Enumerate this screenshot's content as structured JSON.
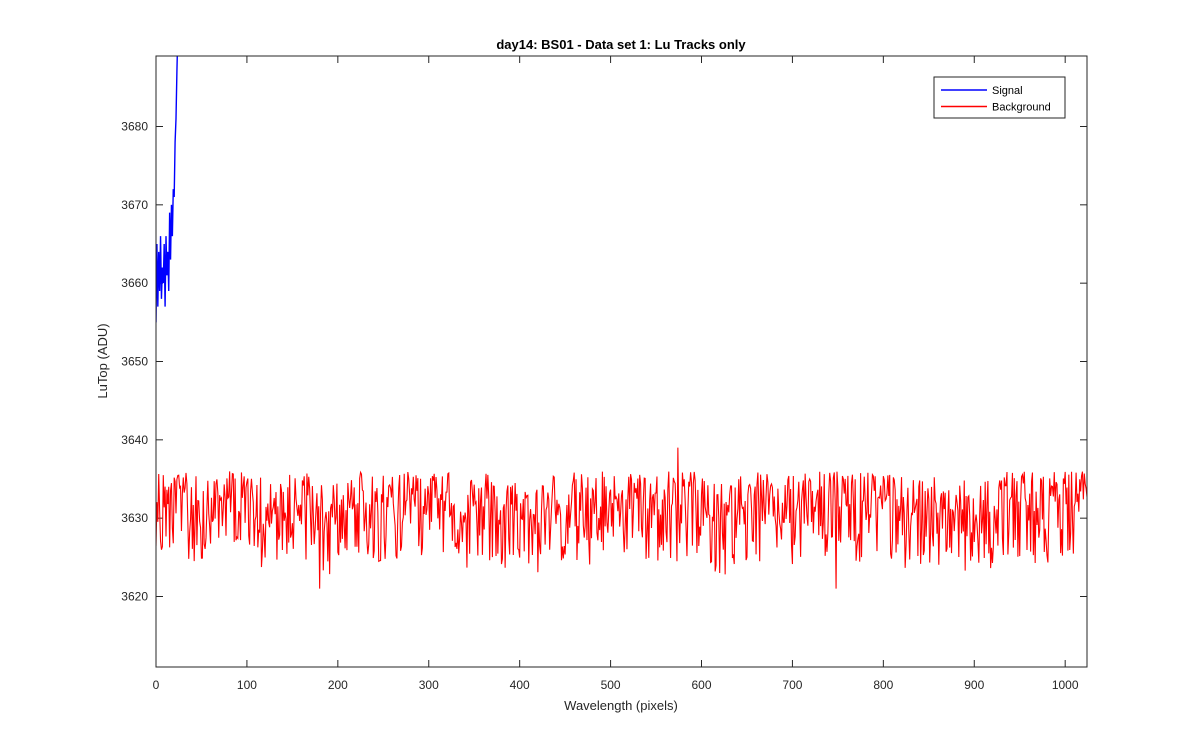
{
  "chart_data": {
    "type": "line",
    "title": "day14: BS01 - Data set 1: Lu Tracks only",
    "xlabel": "Wavelength (pixels)",
    "ylabel": "LuTop (ADU)",
    "xlim": [
      0,
      1024
    ],
    "ylim": [
      3611,
      3689
    ],
    "xticks": [
      0,
      100,
      200,
      300,
      400,
      500,
      600,
      700,
      800,
      900,
      1000
    ],
    "yticks": [
      3620,
      3630,
      3640,
      3650,
      3660,
      3670,
      3680
    ],
    "grid": false,
    "legend_position": "top-right",
    "series": [
      {
        "name": "Signal",
        "color": "#0000ff",
        "x": [
          0,
          1,
          2,
          3,
          4,
          5,
          6,
          7,
          8,
          9,
          10,
          11,
          12,
          13,
          14,
          15,
          16,
          17,
          18,
          19,
          20,
          21,
          22,
          23,
          24
        ],
        "y": [
          3655,
          3665,
          3657,
          3664,
          3659,
          3666,
          3658,
          3662,
          3660,
          3665,
          3657,
          3666,
          3661,
          3664,
          3659,
          3669,
          3663,
          3670,
          3666,
          3672,
          3671,
          3678,
          3681,
          3687,
          3692
        ]
      },
      {
        "name": "Background",
        "color": "#ff0000",
        "x_range": [
          0,
          1024
        ],
        "baseline": 3630,
        "typical_min": 3622,
        "typical_max": 3636,
        "peak": {
          "x": 574,
          "y": 3639
        },
        "dips": [
          {
            "x": 180,
            "y": 3621
          },
          {
            "x": 748,
            "y": 3621
          }
        ]
      }
    ]
  }
}
